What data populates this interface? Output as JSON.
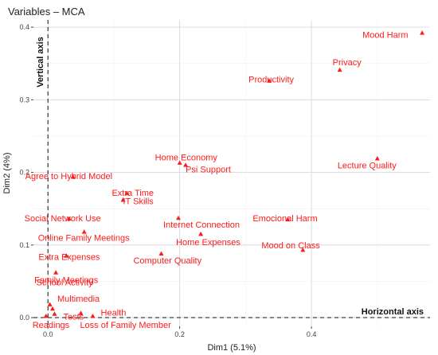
{
  "chart_data": {
    "type": "scatter",
    "title": "Variables – MCA",
    "xlabel": "Dim1 (5.1%)",
    "ylabel": "Dim2 (4%)",
    "xlim": [
      -0.022,
      0.58
    ],
    "ylim": [
      -0.012,
      0.41
    ],
    "xticks": [
      0.0,
      0.2,
      0.4
    ],
    "xtick_labels": [
      "0.0",
      "0.2",
      "0.4"
    ],
    "yticks": [
      0.0,
      0.1,
      0.2,
      0.3,
      0.4
    ],
    "ytick_labels": [
      "0.0",
      "0.1",
      "0.2",
      "0.3",
      "0.4"
    ],
    "grid": true,
    "point_color": "#ff1a1a",
    "reference_lines": {
      "vertical_label": "Vertical axis",
      "horizontal_label": "Horizontal axis"
    },
    "points": [
      {
        "label": "Mood Harm",
        "x": 0.568,
        "y": 0.392
      },
      {
        "label": "Privacy",
        "x": 0.443,
        "y": 0.341
      },
      {
        "label": "Productivity",
        "x": 0.336,
        "y": 0.326
      },
      {
        "label": "Lecture Quality",
        "x": 0.5,
        "y": 0.219
      },
      {
        "label": "Home Economy",
        "x": 0.2,
        "y": 0.213
      },
      {
        "label": "Psi Support",
        "x": 0.209,
        "y": 0.21
      },
      {
        "label": "Agree to Hybrid Model",
        "x": 0.038,
        "y": 0.194
      },
      {
        "label": "Extra Time",
        "x": 0.12,
        "y": 0.171
      },
      {
        "label": "IT Skills",
        "x": 0.114,
        "y": 0.162
      },
      {
        "label": "Social Network Use",
        "x": 0.032,
        "y": 0.136
      },
      {
        "label": "Internet Connection",
        "x": 0.198,
        "y": 0.137
      },
      {
        "label": "Emocional Harm",
        "x": 0.364,
        "y": 0.135
      },
      {
        "label": "Online Family Meetings",
        "x": 0.055,
        "y": 0.118
      },
      {
        "label": "Home Expenses",
        "x": 0.232,
        "y": 0.115
      },
      {
        "label": "Mood on Class",
        "x": 0.387,
        "y": 0.093
      },
      {
        "label": "Extra Expenses",
        "x": 0.028,
        "y": 0.085
      },
      {
        "label": "Computer Quality",
        "x": 0.172,
        "y": 0.088
      },
      {
        "label": "Family Meetings",
        "x": 0.012,
        "y": 0.062
      },
      {
        "label": "School Activity",
        "x": 0.003,
        "y": 0.018
      },
      {
        "label": "Multimedia",
        "x": 0.007,
        "y": 0.012
      },
      {
        "label": "Health",
        "x": 0.05,
        "y": 0.006
      },
      {
        "label": "Tests",
        "x": 0.01,
        "y": 0.005
      },
      {
        "label": "Readings",
        "x": -0.003,
        "y": 0.002
      },
      {
        "label": "Loss of Family Member",
        "x": 0.068,
        "y": 0.002
      }
    ]
  }
}
